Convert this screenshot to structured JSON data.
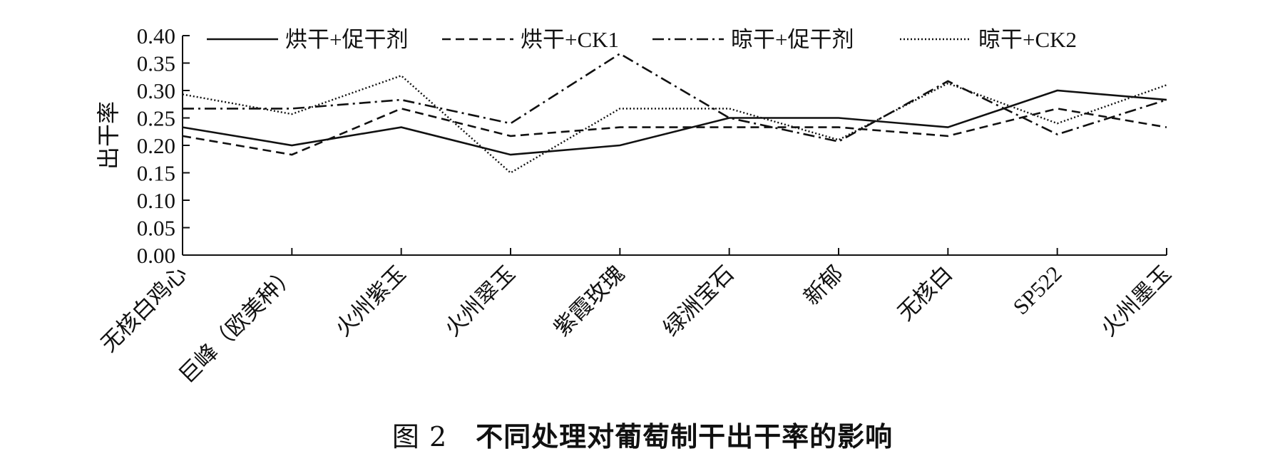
{
  "caption": {
    "figure_label": "图 2",
    "title": "不同处理对葡萄制干出干率的影响"
  },
  "chart_data": {
    "type": "line",
    "title": "",
    "xlabel": "",
    "ylabel": "出干率",
    "ylim": [
      0,
      0.4
    ],
    "yticks": [
      "0.00",
      "0.05",
      "0.10",
      "0.15",
      "0.20",
      "0.25",
      "0.30",
      "0.35",
      "0.40"
    ],
    "legend_position": "top",
    "categories": [
      "无核白鸡心",
      "巨峰（欧美种）",
      "火州紫玉",
      "火州翠玉",
      "紫霞玫瑰",
      "绿洲宝石",
      "新郁",
      "无核白",
      "SP522",
      "火州墨玉"
    ],
    "series": [
      {
        "name": "烘干+促干剂",
        "style": "solid",
        "values": [
          0.233,
          0.2,
          0.233,
          0.183,
          0.2,
          0.25,
          0.25,
          0.233,
          0.3,
          0.283
        ]
      },
      {
        "name": "烘干+CK1",
        "style": "dashed",
        "values": [
          0.217,
          0.183,
          0.267,
          0.217,
          0.233,
          0.233,
          0.233,
          0.217,
          0.267,
          0.233
        ]
      },
      {
        "name": "晾干+促干剂",
        "style": "dashdot",
        "values": [
          0.267,
          0.267,
          0.283,
          0.24,
          0.367,
          0.25,
          0.207,
          0.317,
          0.22,
          0.283
        ]
      },
      {
        "name": "晾干+CK2",
        "style": "dotted",
        "values": [
          0.293,
          0.257,
          0.327,
          0.15,
          0.267,
          0.267,
          0.21,
          0.313,
          0.24,
          0.31
        ]
      }
    ]
  }
}
